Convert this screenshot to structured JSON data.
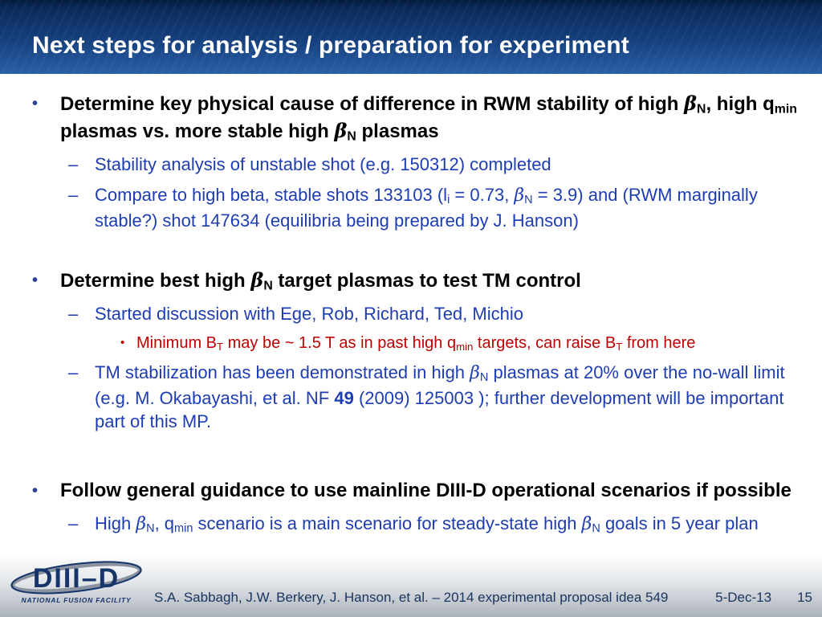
{
  "slide": {
    "title": "Next steps for analysis / preparation for experiment"
  },
  "colors": {
    "header_top": "#071c3e",
    "header_bottom": "#2a5fa8",
    "l1_marker_blue": "#2e4396",
    "bullet_blue": "#1e3db1",
    "alert_red": "#c00000",
    "footer_navy": "#17345e"
  },
  "content": {
    "groups": [
      {
        "lines": [
          {
            "level": "l1",
            "marker": "•",
            "segments": [
              {
                "t": "Determine key physical cause of difference in RWM stability of high "
              },
              {
                "t": "β",
                "greek": true
              },
              {
                "t": "N",
                "sub": true
              },
              {
                "t": ", high q"
              },
              {
                "t": "min",
                "sub": true
              },
              {
                "t": " plasmas vs. more stable high "
              },
              {
                "t": "β",
                "greek": true
              },
              {
                "t": "N",
                "sub": true
              },
              {
                "t": " plasmas"
              }
            ]
          },
          {
            "level": "l2",
            "marker": "–",
            "segments": [
              {
                "t": "Stability analysis of unstable shot (e.g. 150312) completed"
              }
            ]
          },
          {
            "level": "l2",
            "marker": "–",
            "segments": [
              {
                "t": "Compare to high beta, stable shots 133103 (l"
              },
              {
                "t": "i",
                "sub": true
              },
              {
                "t": " = 0.73, "
              },
              {
                "t": "β",
                "greek": true
              },
              {
                "t": "N",
                "sub": true
              },
              {
                "t": " = 3.9) and (RWM marginally stable?) shot 147634 (equilibria being prepared by J. Hanson)"
              }
            ]
          }
        ]
      },
      {
        "lines": [
          {
            "level": "l1",
            "marker": "•",
            "segments": [
              {
                "t": "Determine best high "
              },
              {
                "t": "β",
                "greek": true
              },
              {
                "t": "N",
                "sub": true
              },
              {
                "t": " target plasmas to test TM control"
              }
            ]
          },
          {
            "level": "l2",
            "marker": "–",
            "segments": [
              {
                "t": "Started discussion with Ege, Rob, Richard, Ted, Michio"
              }
            ]
          },
          {
            "level": "l3",
            "marker": "•",
            "segments": [
              {
                "t": "Minimum B"
              },
              {
                "t": "T",
                "sub": true
              },
              {
                "t": " may be ~ 1.5 T as in past high q"
              },
              {
                "t": "min",
                "sub": true
              },
              {
                "t": " targets, can raise B"
              },
              {
                "t": "T",
                "sub": true
              },
              {
                "t": " from here"
              }
            ]
          },
          {
            "level": "l2",
            "marker": "–",
            "segments": [
              {
                "t": "TM stabilization has been demonstrated in high "
              },
              {
                "t": "β",
                "greek": true
              },
              {
                "t": "N",
                "sub": true
              },
              {
                "t": " plasmas at 20% over the no-wall limit (e.g. M. Okabayashi, et al. NF "
              },
              {
                "t": "49",
                "bold": true
              },
              {
                "t": " (2009) 125003 ); further development will be important part of this MP."
              }
            ]
          }
        ]
      },
      {
        "lines": [
          {
            "level": "l1",
            "marker": "•",
            "segments": [
              {
                "t": "Follow general guidance to use mainline DIII-D operational scenarios if possible"
              }
            ]
          },
          {
            "level": "l2",
            "marker": "–",
            "segments": [
              {
                "t": "High "
              },
              {
                "t": "β",
                "greek": true
              },
              {
                "t": "N",
                "sub": true
              },
              {
                "t": ", q"
              },
              {
                "t": "min",
                "sub": true
              },
              {
                "t": " scenario is a main scenario for steady-state high "
              },
              {
                "t": "β",
                "greek": true
              },
              {
                "t": "N",
                "sub": true
              },
              {
                "t": " goals in 5 year plan"
              }
            ]
          }
        ]
      }
    ]
  },
  "logo": {
    "name": "DIII–D",
    "subtitle": "NATIONAL FUSION FACILITY"
  },
  "footer": {
    "credit": "S.A. Sabbagh, J.W. Berkery, J. Hanson, et al. – 2014 experimental proposal idea 549",
    "date": "5-Dec-13",
    "page": "15"
  }
}
